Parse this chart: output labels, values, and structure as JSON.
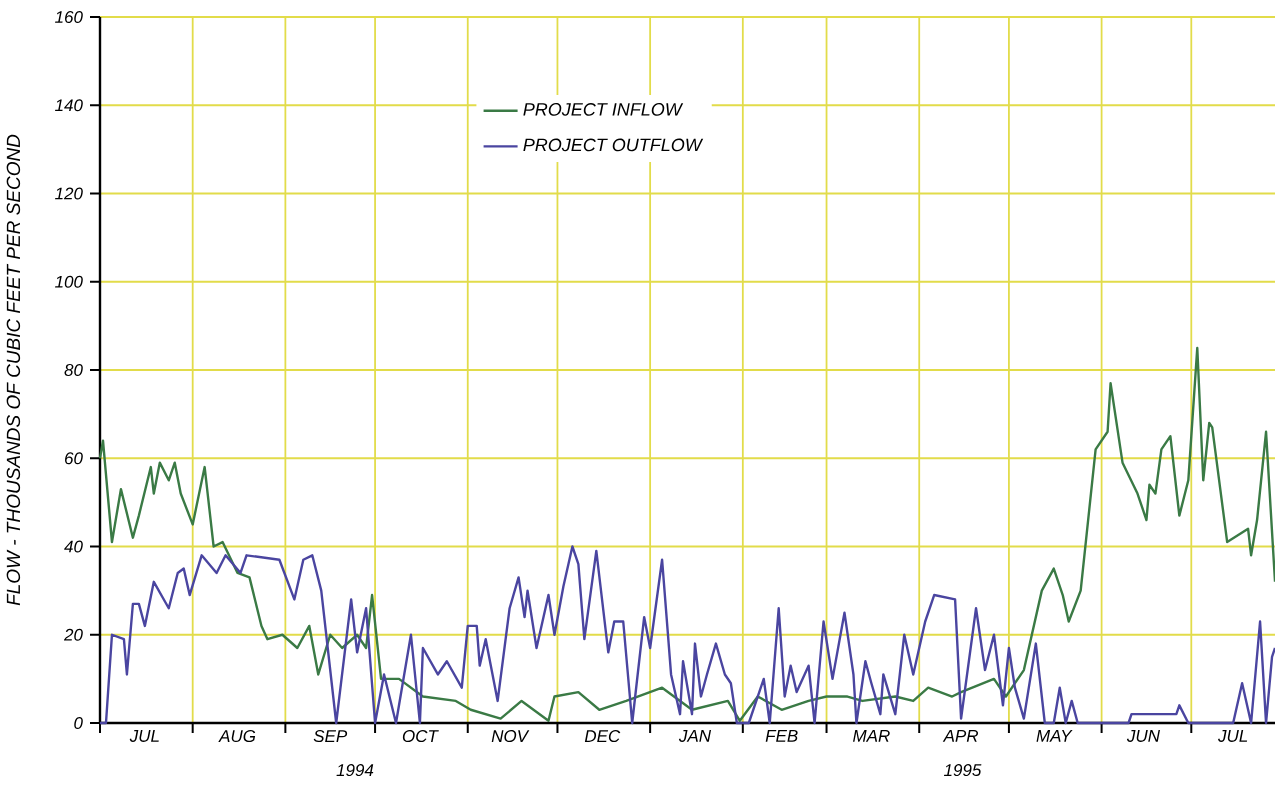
{
  "chart_data": {
    "type": "line",
    "ylabel": "FLOW - THOUSANDS OF CUBIC FEET PER SECOND",
    "xlim": [
      "1994-07-01",
      "1995-07-29"
    ],
    "ylim": [
      0,
      160
    ],
    "yticks": [
      0,
      20,
      40,
      60,
      80,
      100,
      120,
      140,
      160
    ],
    "xticks": [
      {
        "value": "1994-07-01",
        "label": null
      },
      {
        "value": "1994-08-01",
        "label": null
      },
      {
        "value": "1994-09-01",
        "label": null
      },
      {
        "value": "1994-10-01",
        "label": null
      },
      {
        "value": "1994-11-01",
        "label": null
      },
      {
        "value": "1994-12-01",
        "label": null
      },
      {
        "value": "1995-01-01",
        "label": null
      },
      {
        "value": "1995-02-01",
        "label": null
      },
      {
        "value": "1995-03-01",
        "label": null
      },
      {
        "value": "1995-04-01",
        "label": null
      },
      {
        "value": "1995-05-01",
        "label": null
      },
      {
        "value": "1995-06-01",
        "label": null
      },
      {
        "value": "1995-07-01",
        "label": null
      },
      {
        "value": "1994-07-16",
        "label": "JUL"
      },
      {
        "value": "1994-08-16",
        "label": "AUG"
      },
      {
        "value": "1994-09-16",
        "label": "SEP"
      },
      {
        "value": "1994-10-16",
        "label": "OCT"
      },
      {
        "value": "1994-11-15",
        "label": "NOV"
      },
      {
        "value": "1994-12-16",
        "label": "DEC"
      },
      {
        "value": "1995-01-16",
        "label": "JAN"
      },
      {
        "value": "1995-02-14",
        "label": "FEB"
      },
      {
        "value": "1995-03-16",
        "label": "MAR"
      },
      {
        "value": "1995-04-15",
        "label": "APR"
      },
      {
        "value": "1995-05-16",
        "label": "MAY"
      },
      {
        "value": "1995-06-15",
        "label": "JUN"
      },
      {
        "value": "1995-07-15",
        "label": "JUL"
      }
    ],
    "annotations": [
      "1994",
      "1995"
    ],
    "grid": true,
    "legend": "top",
    "series": [
      {
        "name": "PROJECT INFLOW",
        "color": "#3a7a45",
        "x": [
          "1994-07-01",
          "1994-07-02",
          "1994-07-05",
          "1994-07-08",
          "1994-07-12",
          "1994-07-14",
          "1994-07-18",
          "1994-07-19",
          "1994-07-21",
          "1994-07-24",
          "1994-07-26",
          "1994-07-28",
          "1994-08-01",
          "1994-08-05",
          "1994-08-08",
          "1994-08-11",
          "1994-08-16",
          "1994-08-20",
          "1994-08-24",
          "1994-08-26",
          "1994-08-31",
          "1994-09-05",
          "1994-09-09",
          "1994-09-12",
          "1994-09-16",
          "1994-09-20",
          "1994-09-25",
          "1994-09-28",
          "1994-09-30",
          "1994-10-03",
          "1994-10-09",
          "1994-10-17",
          "1994-10-28",
          "1994-11-02",
          "1994-11-12",
          "1994-11-19",
          "1994-11-28",
          "1994-11-30",
          "1994-12-08",
          "1994-12-15",
          "1994-12-24",
          "1995-01-05",
          "1995-01-15",
          "1995-01-27",
          "1995-01-31",
          "1995-02-06",
          "1995-02-14",
          "1995-02-23",
          "1995-03-01",
          "1995-03-08",
          "1995-03-13",
          "1995-03-24",
          "1995-03-30",
          "1995-04-04",
          "1995-04-12",
          "1995-04-15",
          "1995-04-26",
          "1995-04-30",
          "1995-05-06",
          "1995-05-12",
          "1995-05-16",
          "1995-05-19",
          "1995-05-21",
          "1995-05-25",
          "1995-05-30",
          "1995-06-03",
          "1995-06-04",
          "1995-06-08",
          "1995-06-13",
          "1995-06-16",
          "1995-06-17",
          "1995-06-19",
          "1995-06-21",
          "1995-06-24",
          "1995-06-27",
          "1995-06-30",
          "1995-07-03",
          "1995-07-05",
          "1995-07-07",
          "1995-07-08",
          "1995-07-13",
          "1995-07-20",
          "1995-07-21",
          "1995-07-23",
          "1995-07-26",
          "1995-07-29"
        ],
        "values": [
          60,
          64,
          41,
          53,
          42,
          47,
          58,
          52,
          59,
          55,
          59,
          52,
          45,
          58,
          40,
          41,
          34,
          33,
          22,
          19,
          20,
          17,
          22,
          11,
          20,
          17,
          20,
          17,
          29,
          10,
          10,
          6,
          5,
          3,
          1,
          5,
          0.5,
          6,
          7,
          3,
          5,
          8,
          3,
          5,
          0.5,
          6,
          3,
          5,
          6,
          6,
          5,
          6,
          5,
          8,
          6,
          7,
          10,
          6,
          12,
          30,
          35,
          29,
          23,
          30,
          62,
          66,
          77,
          59,
          52,
          46,
          54,
          52,
          62,
          65,
          47,
          55,
          85,
          55,
          68,
          67,
          41,
          44,
          38,
          46,
          66,
          32
        ]
      },
      {
        "name": "PROJECT OUTFLOW",
        "color": "#4a45a0",
        "x": [
          "1994-07-01",
          "1994-07-03",
          "1994-07-05",
          "1994-07-09",
          "1994-07-10",
          "1994-07-12",
          "1994-07-14",
          "1994-07-16",
          "1994-07-19",
          "1994-07-24",
          "1994-07-27",
          "1994-07-29",
          "1994-07-31",
          "1994-08-04",
          "1994-08-09",
          "1994-08-12",
          "1994-08-17",
          "1994-08-19",
          "1994-08-30",
          "1994-09-04",
          "1994-09-07",
          "1994-09-10",
          "1994-09-13",
          "1994-09-18",
          "1994-09-23",
          "1994-09-25",
          "1994-09-28",
          "1994-10-01",
          "1994-10-04",
          "1994-10-08",
          "1994-10-13",
          "1994-10-16",
          "1994-10-17",
          "1994-10-22",
          "1994-10-25",
          "1994-10-30",
          "1994-11-01",
          "1994-11-04",
          "1994-11-05",
          "1994-11-07",
          "1994-11-11",
          "1994-11-15",
          "1994-11-18",
          "1994-11-20",
          "1994-11-21",
          "1994-11-24",
          "1994-11-28",
          "1994-11-30",
          "1994-12-03",
          "1994-12-06",
          "1994-12-08",
          "1994-12-10",
          "1994-12-14",
          "1994-12-18",
          "1994-12-20",
          "1994-12-23",
          "1994-12-26",
          "1994-12-30",
          "1995-01-01",
          "1995-01-05",
          "1995-01-08",
          "1995-01-11",
          "1995-01-12",
          "1995-01-15",
          "1995-01-16",
          "1995-01-18",
          "1995-01-20",
          "1995-01-23",
          "1995-01-26",
          "1995-01-28",
          "1995-01-30",
          "1995-02-03",
          "1995-02-08",
          "1995-02-10",
          "1995-02-13",
          "1995-02-15",
          "1995-02-17",
          "1995-02-19",
          "1995-02-23",
          "1995-02-25",
          "1995-02-28",
          "1995-03-03",
          "1995-03-07",
          "1995-03-10",
          "1995-03-11",
          "1995-03-14",
          "1995-03-16",
          "1995-03-19",
          "1995-03-20",
          "1995-03-24",
          "1995-03-27",
          "1995-03-30",
          "1995-04-03",
          "1995-04-06",
          "1995-04-13",
          "1995-04-15",
          "1995-04-20",
          "1995-04-23",
          "1995-04-26",
          "1995-04-29",
          "1995-05-01",
          "1995-05-03",
          "1995-05-06",
          "1995-05-10",
          "1995-05-13",
          "1995-05-16",
          "1995-05-18",
          "1995-05-20",
          "1995-05-22",
          "1995-05-24",
          "1995-06-10",
          "1995-06-11",
          "1995-06-26",
          "1995-06-27",
          "1995-06-30",
          "1995-07-15",
          "1995-07-18",
          "1995-07-21",
          "1995-07-24",
          "1995-07-26",
          "1995-07-28",
          "1995-07-29"
        ],
        "values": [
          0,
          0,
          20,
          19,
          11,
          27,
          27,
          22,
          32,
          26,
          34,
          35,
          29,
          38,
          34,
          38,
          34,
          38,
          37,
          28,
          37,
          38,
          30,
          0,
          28,
          16,
          26,
          0,
          11,
          0,
          20,
          0,
          17,
          11,
          14,
          8,
          22,
          22,
          13,
          19,
          5,
          26,
          33,
          24,
          30,
          17,
          29,
          20,
          31,
          40,
          36,
          19,
          39,
          16,
          23,
          23,
          0,
          24,
          17,
          37,
          11,
          2,
          14,
          2,
          18,
          6,
          11,
          18,
          11,
          9,
          0,
          0,
          10,
          0,
          26,
          6,
          13,
          7,
          13,
          0,
          23,
          10,
          25,
          11,
          0,
          14,
          9,
          2,
          11,
          2,
          20,
          11,
          23,
          29,
          28,
          1,
          26,
          12,
          20,
          4,
          17,
          8,
          1,
          18,
          0,
          0,
          8,
          0,
          5,
          0,
          0,
          2,
          2,
          4,
          0,
          0,
          9,
          0,
          23,
          0,
          15,
          17
        ]
      }
    ]
  }
}
